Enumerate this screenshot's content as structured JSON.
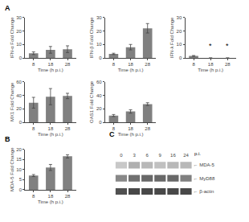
{
  "chart_data": [
    {
      "type": "bar",
      "title": "A",
      "categories": [
        "8",
        "18",
        "28"
      ],
      "xlabel": "Time (h p.i.)",
      "ylabel": "IFN-α Fold Change",
      "values": [
        3.5,
        6.0,
        6.5
      ],
      "errors": [
        1.0,
        2.5,
        2.5
      ],
      "ylim": [
        0,
        30
      ],
      "yticks": [
        0,
        10,
        20,
        30
      ],
      "color": "#808080",
      "grid": false
    },
    {
      "type": "bar",
      "categories": [
        "8",
        "18",
        "28"
      ],
      "xlabel": "Time (h p.i.)",
      "ylabel": "IFN-β Fold Change",
      "values": [
        3.0,
        8.0,
        22.0
      ],
      "errors": [
        0.5,
        2.0,
        3.5
      ],
      "ylim": [
        0,
        30
      ],
      "yticks": [
        0,
        10,
        20,
        30
      ],
      "color": "#808080",
      "grid": false
    },
    {
      "type": "bar",
      "categories": [
        "8",
        "18",
        "28"
      ],
      "xlabel": "Time (h p.i.)",
      "ylabel": "IFN-λ Fold Change",
      "values": [
        1.5,
        0,
        0
      ],
      "errors": [
        0.3,
        0,
        0
      ],
      "ylim": [
        0,
        30
      ],
      "yticks": [
        0,
        10,
        20,
        30
      ],
      "color": "#808080",
      "grid": false,
      "annotations": [
        {
          "x": 1,
          "y": 5,
          "text": "*"
        },
        {
          "x": 2,
          "y": 5,
          "text": "*"
        }
      ]
    },
    {
      "type": "bar",
      "categories": [
        "8",
        "18",
        "28"
      ],
      "xlabel": "Time (h p.i.)",
      "ylabel": "MX1 Fold Change",
      "values": [
        29,
        38,
        39
      ],
      "errors": [
        8,
        12,
        4
      ],
      "ylim": [
        0,
        60
      ],
      "yticks": [
        0,
        20,
        40,
        60
      ],
      "color": "#808080",
      "grid": false
    },
    {
      "type": "bar",
      "categories": [
        "8",
        "18",
        "28"
      ],
      "xlabel": "Time (h p.i.)",
      "ylabel": "OAS1 Fold Change",
      "values": [
        10,
        16,
        27
      ],
      "errors": [
        1.5,
        2.5,
        2.0
      ],
      "ylim": [
        0,
        60
      ],
      "yticks": [
        0,
        20,
        40,
        60
      ],
      "color": "#808080",
      "grid": false
    },
    {
      "type": "bar",
      "title": "B",
      "categories": [
        "8",
        "18",
        "28"
      ],
      "xlabel": "Time (h p.i.)",
      "ylabel": "MDA-5 Fold Change",
      "values": [
        7.0,
        11.0,
        16.5
      ],
      "errors": [
        0.5,
        1.5,
        0.8
      ],
      "ylim": [
        0,
        20
      ],
      "yticks": [
        0,
        5,
        10,
        15,
        20
      ],
      "color": "#808080",
      "grid": false
    },
    {
      "type": "blot",
      "title": "C",
      "categories": [
        "0",
        "3",
        "6",
        "9",
        "16",
        "24"
      ],
      "xlabel": "p.i.",
      "series": [
        {
          "name": "← MDA-5",
          "colors": [
            "#c8c8c8",
            "#b0b0b0",
            "#b8b8b8",
            "#c0c0c0",
            "#b8b8b8",
            "#b8b8b8"
          ]
        },
        {
          "name": "← MyD88",
          "colors": [
            "#888888",
            "#707070",
            "#686868",
            "#686868",
            "#686868",
            "#808080"
          ]
        },
        {
          "name": "← β-actin",
          "colors": [
            "#505050",
            "#484848",
            "#484848",
            "#484848",
            "#484848",
            "#484848"
          ]
        }
      ]
    }
  ]
}
